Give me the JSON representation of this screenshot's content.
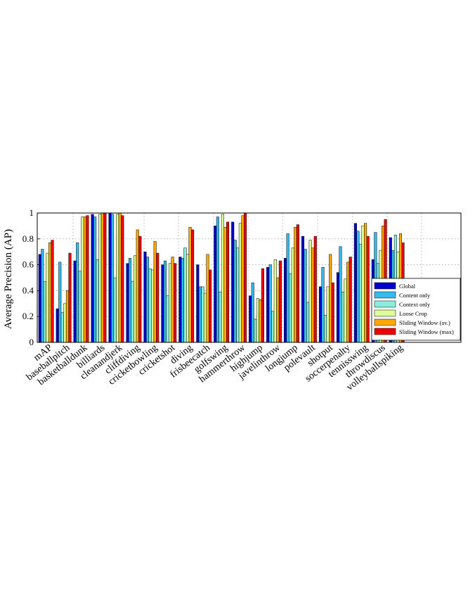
{
  "chart_data": {
    "type": "bar",
    "ylabel": "Average Precision (AP)",
    "xlabel": "",
    "ylim": [
      0,
      1
    ],
    "yticks": [
      "0",
      "0.2",
      "0.4",
      "0.6",
      "0.8",
      "1"
    ],
    "grid": true,
    "legend_position": "bottom-right",
    "categories": [
      "mAP",
      "baseballpitch",
      "basketballdunk",
      "billiards",
      "cleanandjerk",
      "cliffdiving",
      "cricketbowling",
      "cricketshot",
      "diving",
      "frisbeecatch",
      "golfswing",
      "hammerthrow",
      "highjump",
      "javelinthrow",
      "longjump",
      "polevault",
      "shotput",
      "soccerpenalty",
      "tennisswing",
      "throwdiscus",
      "volleyballspiking"
    ],
    "series": [
      {
        "name": "Global",
        "color": "#0000cc",
        "values": [
          0.68,
          0.26,
          0.63,
          0.99,
          1.0,
          0.61,
          0.7,
          0.6,
          0.66,
          0.6,
          0.9,
          0.93,
          0.36,
          0.58,
          0.65,
          0.82,
          0.43,
          0.54,
          0.92,
          0.64,
          0.81
        ]
      },
      {
        "name": "Content only",
        "color": "#33bbee",
        "values": [
          0.72,
          0.62,
          0.77,
          0.97,
          0.99,
          0.65,
          0.66,
          0.63,
          0.65,
          0.43,
          0.97,
          0.79,
          0.46,
          0.6,
          0.84,
          0.72,
          0.58,
          0.74,
          0.86,
          0.85,
          0.71
        ]
      },
      {
        "name": "Context only",
        "color": "#88eedd",
        "values": [
          0.47,
          0.23,
          0.55,
          0.64,
          0.5,
          0.47,
          0.57,
          0.36,
          0.73,
          0.43,
          0.39,
          0.73,
          0.18,
          0.24,
          0.53,
          0.31,
          0.21,
          0.39,
          0.76,
          0.61,
          0.83
        ]
      },
      {
        "name": "Loose Crop",
        "color": "#ddff99",
        "values": [
          0.69,
          0.3,
          0.97,
          0.99,
          0.99,
          0.67,
          0.56,
          0.61,
          0.68,
          0.38,
          0.99,
          0.92,
          0.34,
          0.64,
          0.73,
          0.79,
          0.43,
          0.49,
          0.9,
          0.71,
          0.7
        ]
      },
      {
        "name": "Sliding Window (av.)",
        "color": "#ffaa00",
        "values": [
          0.77,
          0.4,
          0.97,
          1.0,
          1.0,
          0.87,
          0.78,
          0.66,
          0.89,
          0.68,
          0.89,
          0.98,
          0.33,
          0.5,
          0.89,
          0.73,
          0.68,
          0.62,
          0.92,
          0.9,
          0.84
        ]
      },
      {
        "name": "Sliding Window (max)",
        "color": "#ee0000",
        "values": [
          0.79,
          0.69,
          0.98,
          1.0,
          0.98,
          0.82,
          0.69,
          0.61,
          0.87,
          0.56,
          0.93,
          1.0,
          0.57,
          0.63,
          0.91,
          0.82,
          0.46,
          0.66,
          0.82,
          0.95,
          0.77
        ]
      }
    ]
  }
}
